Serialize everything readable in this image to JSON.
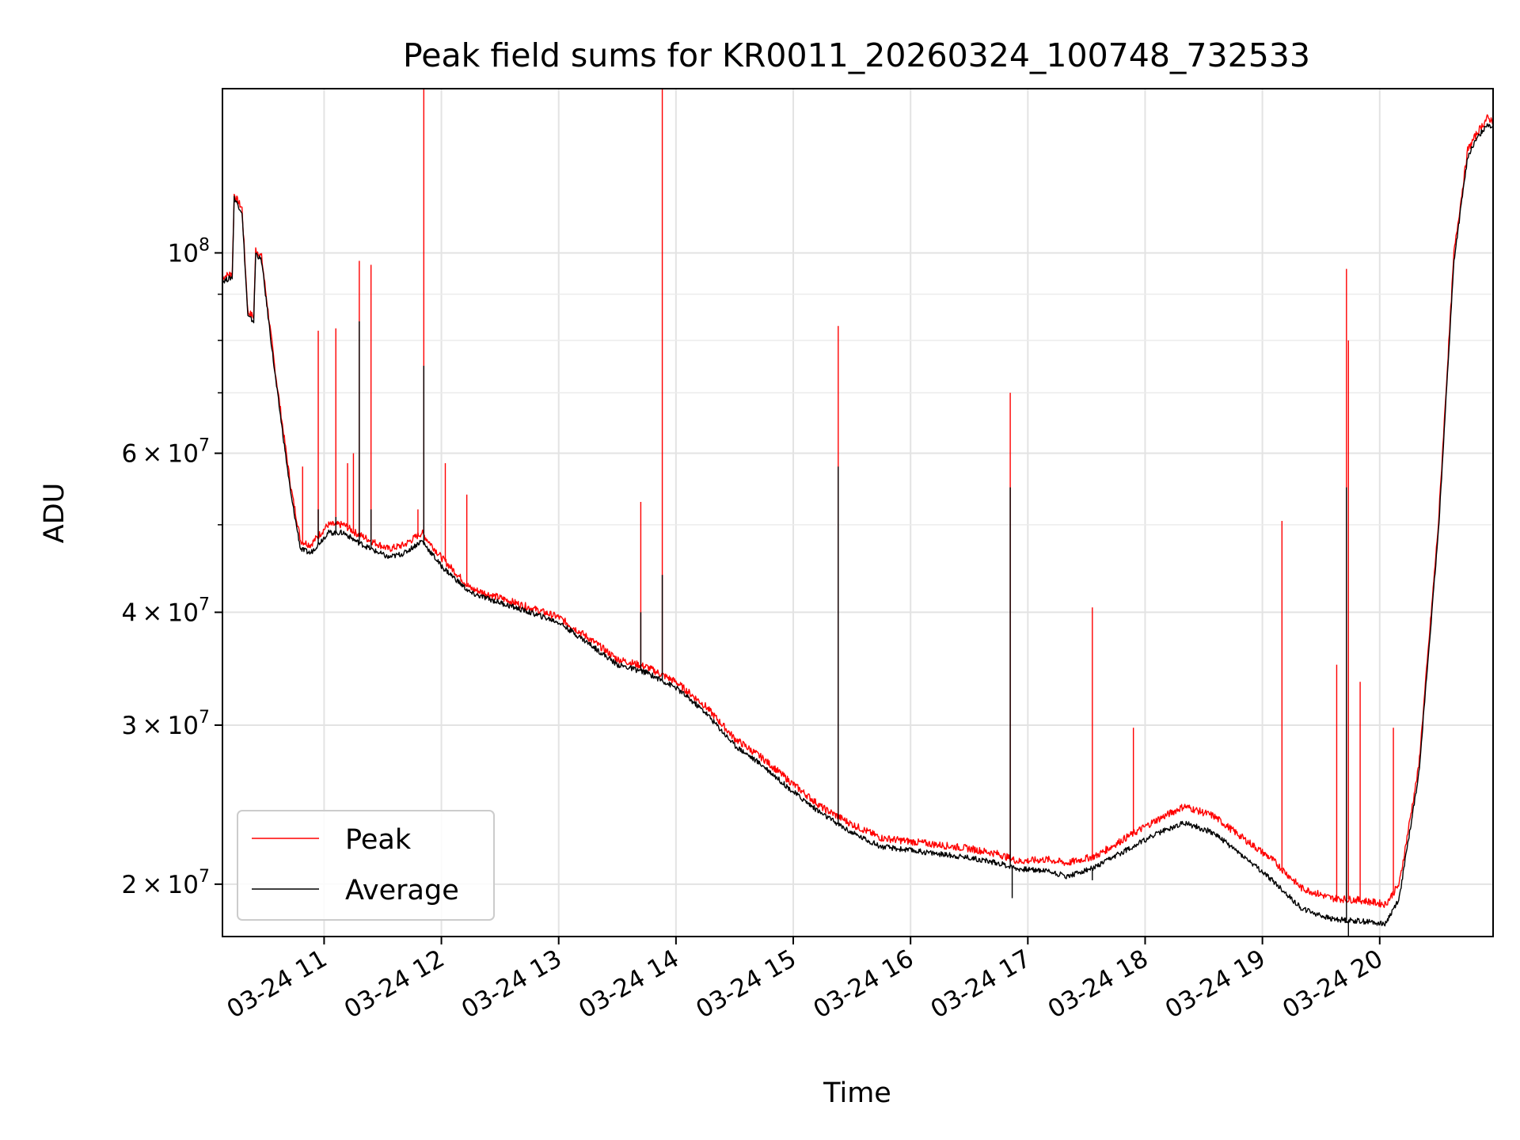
{
  "chart_data": {
    "type": "line",
    "title": "Peak field sums for KR0011_20260324_100748_732533",
    "xlabel": "Time",
    "ylabel": "ADU",
    "yscale": "log",
    "grid": true,
    "legend_position": "lower-left",
    "xlim": [
      "03-24 10:08",
      "03-24 20:58"
    ],
    "ylim": [
      17500000,
      152000000
    ],
    "x_ticks": [
      "03-24 11",
      "03-24 12",
      "03-24 13",
      "03-24 14",
      "03-24 15",
      "03-24 16",
      "03-24 17",
      "03-24 18",
      "03-24 19",
      "03-24 20"
    ],
    "y_ticks": [
      {
        "value": 20000000,
        "mantissa": "2",
        "exp": "7"
      },
      {
        "value": 30000000,
        "mantissa": "3",
        "exp": "7"
      },
      {
        "value": 40000000,
        "mantissa": "4",
        "exp": "7"
      },
      {
        "value": 60000000,
        "mantissa": "6",
        "exp": "7"
      },
      {
        "value": 100000000,
        "mantissa": "",
        "exp": "8"
      }
    ],
    "series": [
      {
        "name": "Peak",
        "color": "#ff0000",
        "baseline": [
          [
            "03-24 10:08",
            94000000
          ],
          [
            "03-24 10:13",
            95000000
          ],
          [
            "03-24 10:14",
            116000000
          ],
          [
            "03-24 10:18",
            112000000
          ],
          [
            "03-24 10:21",
            86000000
          ],
          [
            "03-24 10:24",
            85000000
          ],
          [
            "03-24 10:25",
            101000000
          ],
          [
            "03-24 10:28",
            99000000
          ],
          [
            "03-24 10:35",
            74000000
          ],
          [
            "03-24 10:43",
            55000000
          ],
          [
            "03-24 10:48",
            48000000
          ],
          [
            "03-24 10:53",
            47500000
          ],
          [
            "03-24 11:02",
            50000000
          ],
          [
            "03-24 11:10",
            50000000
          ],
          [
            "03-24 11:16",
            49000000
          ],
          [
            "03-24 11:24",
            48000000
          ],
          [
            "03-24 11:33",
            47000000
          ],
          [
            "03-24 11:41",
            47500000
          ],
          [
            "03-24 11:50",
            49000000
          ],
          [
            "03-24 12:00",
            46000000
          ],
          [
            "03-24 12:15",
            42500000
          ],
          [
            "03-24 12:30",
            41500000
          ],
          [
            "03-24 12:45",
            40500000
          ],
          [
            "03-24 13:00",
            39500000
          ],
          [
            "03-24 13:15",
            37500000
          ],
          [
            "03-24 13:30",
            35500000
          ],
          [
            "03-24 13:45",
            34800000
          ],
          [
            "03-24 14:00",
            33500000
          ],
          [
            "03-24 14:15",
            31500000
          ],
          [
            "03-24 14:30",
            29000000
          ],
          [
            "03-24 14:45",
            27500000
          ],
          [
            "03-24 15:00",
            25800000
          ],
          [
            "03-24 15:15",
            24300000
          ],
          [
            "03-24 15:30",
            23300000
          ],
          [
            "03-24 15:45",
            22500000
          ],
          [
            "03-24 16:00",
            22300000
          ],
          [
            "03-24 16:15",
            22100000
          ],
          [
            "03-24 16:30",
            21900000
          ],
          [
            "03-24 16:45",
            21600000
          ],
          [
            "03-24 16:55",
            21200000
          ],
          [
            "03-24 17:10",
            21300000
          ],
          [
            "03-24 17:20",
            21100000
          ],
          [
            "03-24 17:35",
            21500000
          ],
          [
            "03-24 17:50",
            22500000
          ],
          [
            "03-24 18:05",
            23500000
          ],
          [
            "03-24 18:20",
            24400000
          ],
          [
            "03-24 18:35",
            23800000
          ],
          [
            "03-24 18:50",
            22500000
          ],
          [
            "03-24 19:05",
            21300000
          ],
          [
            "03-24 19:20",
            19800000
          ],
          [
            "03-24 19:35",
            19300000
          ],
          [
            "03-24 19:50",
            19200000
          ],
          [
            "03-24 20:03",
            19000000
          ],
          [
            "03-24 20:10",
            20000000
          ],
          [
            "03-24 20:20",
            27000000
          ],
          [
            "03-24 20:30",
            50000000
          ],
          [
            "03-24 20:38",
            100000000
          ],
          [
            "03-24 20:45",
            130000000
          ],
          [
            "03-24 20:50",
            136000000
          ],
          [
            "03-24 20:55",
            141000000
          ],
          [
            "03-24 20:58",
            140000000
          ]
        ],
        "spikes": [
          [
            "03-24 10:49",
            58000000
          ],
          [
            "03-24 10:57",
            82000000
          ],
          [
            "03-24 11:06",
            82500000
          ],
          [
            "03-24 11:12",
            58500000
          ],
          [
            "03-24 11:15",
            60000000
          ],
          [
            "03-24 11:18",
            98000000
          ],
          [
            "03-24 11:24",
            97000000
          ],
          [
            "03-24 11:48",
            52000000
          ],
          [
            "03-24 11:51",
            152000000
          ],
          [
            "03-24 12:02",
            58500000
          ],
          [
            "03-24 12:13",
            54000000
          ],
          [
            "03-24 13:42",
            53000000
          ],
          [
            "03-24 13:53",
            152000000
          ],
          [
            "03-24 15:23",
            83000000
          ],
          [
            "03-24 16:51",
            70000000
          ],
          [
            "03-24 17:33",
            40500000
          ],
          [
            "03-24 17:54",
            29800000
          ],
          [
            "03-24 19:10",
            50500000
          ],
          [
            "03-24 19:38",
            35000000
          ],
          [
            "03-24 19:43",
            96000000
          ],
          [
            "03-24 19:44",
            80000000
          ],
          [
            "03-24 19:50",
            33500000
          ],
          [
            "03-24 20:07",
            29800000
          ]
        ]
      },
      {
        "name": "Average",
        "color": "#000000",
        "baseline": [
          [
            "03-24 10:08",
            93000000
          ],
          [
            "03-24 10:13",
            94000000
          ],
          [
            "03-24 10:14",
            115000000
          ],
          [
            "03-24 10:18",
            111000000
          ],
          [
            "03-24 10:21",
            85000000
          ],
          [
            "03-24 10:24",
            84000000
          ],
          [
            "03-24 10:25",
            100000000
          ],
          [
            "03-24 10:28",
            98000000
          ],
          [
            "03-24 10:35",
            73000000
          ],
          [
            "03-24 10:43",
            54000000
          ],
          [
            "03-24 10:48",
            47000000
          ],
          [
            "03-24 10:53",
            46500000
          ],
          [
            "03-24 11:02",
            49000000
          ],
          [
            "03-24 11:10",
            49000000
          ],
          [
            "03-24 11:16",
            48000000
          ],
          [
            "03-24 11:24",
            47000000
          ],
          [
            "03-24 11:33",
            46000000
          ],
          [
            "03-24 11:41",
            46500000
          ],
          [
            "03-24 11:50",
            48000000
          ],
          [
            "03-24 12:00",
            45000000
          ],
          [
            "03-24 12:15",
            42000000
          ],
          [
            "03-24 12:30",
            41000000
          ],
          [
            "03-24 12:45",
            40000000
          ],
          [
            "03-24 13:00",
            39000000
          ],
          [
            "03-24 13:15",
            37000000
          ],
          [
            "03-24 13:30",
            35000000
          ],
          [
            "03-24 13:45",
            34300000
          ],
          [
            "03-24 14:00",
            33000000
          ],
          [
            "03-24 14:15",
            31000000
          ],
          [
            "03-24 14:30",
            28500000
          ],
          [
            "03-24 14:45",
            27000000
          ],
          [
            "03-24 15:00",
            25300000
          ],
          [
            "03-24 15:15",
            23900000
          ],
          [
            "03-24 15:30",
            22800000
          ],
          [
            "03-24 15:45",
            22000000
          ],
          [
            "03-24 16:00",
            21800000
          ],
          [
            "03-24 16:15",
            21600000
          ],
          [
            "03-24 16:30",
            21400000
          ],
          [
            "03-24 16:45",
            21100000
          ],
          [
            "03-24 16:55",
            20800000
          ],
          [
            "03-24 17:10",
            20700000
          ],
          [
            "03-24 17:20",
            20400000
          ],
          [
            "03-24 17:35",
            20900000
          ],
          [
            "03-24 17:50",
            21800000
          ],
          [
            "03-24 18:05",
            22700000
          ],
          [
            "03-24 18:20",
            23400000
          ],
          [
            "03-24 18:35",
            22800000
          ],
          [
            "03-24 18:50",
            21500000
          ],
          [
            "03-24 19:05",
            20200000
          ],
          [
            "03-24 19:20",
            18800000
          ],
          [
            "03-24 19:35",
            18300000
          ],
          [
            "03-24 19:50",
            18200000
          ],
          [
            "03-24 20:03",
            18100000
          ],
          [
            "03-24 20:10",
            19300000
          ],
          [
            "03-24 20:20",
            26500000
          ],
          [
            "03-24 20:30",
            49000000
          ],
          [
            "03-24 20:38",
            98000000
          ],
          [
            "03-24 20:45",
            128000000
          ],
          [
            "03-24 20:50",
            134000000
          ],
          [
            "03-24 20:55",
            139000000
          ],
          [
            "03-24 20:58",
            138000000
          ]
        ],
        "spikes": [
          [
            "03-24 10:57",
            52000000
          ],
          [
            "03-24 11:06",
            51000000
          ],
          [
            "03-24 11:18",
            84000000
          ],
          [
            "03-24 11:24",
            52000000
          ],
          [
            "03-24 11:51",
            75000000
          ],
          [
            "03-24 13:42",
            40000000
          ],
          [
            "03-24 13:53",
            44000000
          ],
          [
            "03-24 15:23",
            58000000
          ],
          [
            "03-24 16:51",
            55000000
          ],
          [
            "03-24 16:52",
            19300000
          ],
          [
            "03-24 17:33",
            20200000
          ],
          [
            "03-24 19:43",
            55000000
          ],
          [
            "03-24 19:44",
            17500000
          ]
        ]
      }
    ]
  }
}
